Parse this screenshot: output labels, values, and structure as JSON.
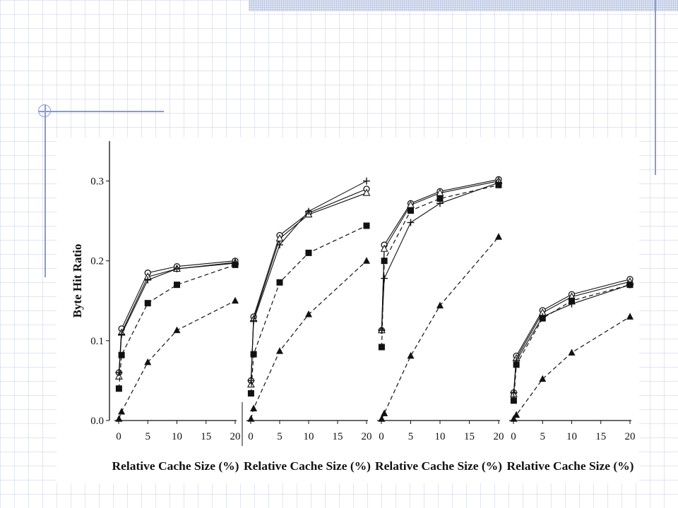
{
  "slide": {
    "accent_color": "#8a9ad0",
    "band_color": "#dfe5f3"
  },
  "chart_data": [
    {
      "type": "line",
      "ylabel": "Byte Hit Ratio",
      "xlabel": "Relative Cache Size (%)",
      "xlim": [
        0,
        20
      ],
      "ylim": [
        0,
        0.35
      ],
      "xticks": [
        "0",
        "5",
        "10",
        "15",
        "20"
      ],
      "yticks": [
        "0.0",
        "0.1",
        "0.2",
        "0.3"
      ],
      "series": [
        {
          "marker": "circle",
          "dash": false,
          "x": [
            0.05,
            0.5,
            5,
            10,
            20
          ],
          "y": [
            0.06,
            0.115,
            0.185,
            0.193,
            0.2
          ]
        },
        {
          "marker": "triangle-open",
          "dash": false,
          "x": [
            0.05,
            0.5,
            5,
            10,
            20
          ],
          "y": [
            0.055,
            0.11,
            0.18,
            0.19,
            0.198
          ]
        },
        {
          "marker": "plus",
          "dash": false,
          "x": [
            0.05,
            0.5,
            5,
            10,
            20
          ],
          "y": [
            0.06,
            0.108,
            0.176,
            0.19,
            0.197
          ]
        },
        {
          "marker": "square",
          "dash": true,
          "x": [
            0.05,
            0.5,
            5,
            10,
            20
          ],
          "y": [
            0.04,
            0.082,
            0.147,
            0.17,
            0.195
          ]
        },
        {
          "marker": "triangle",
          "dash": true,
          "x": [
            0.05,
            0.5,
            5,
            10,
            20
          ],
          "y": [
            0.002,
            0.011,
            0.073,
            0.113,
            0.15
          ]
        }
      ]
    },
    {
      "type": "line",
      "xlabel": "Relative Cache Size (%)",
      "xlim": [
        0,
        20
      ],
      "ylim": [
        0,
        0.35
      ],
      "xticks": [
        "0",
        "5",
        "10",
        "15",
        "20"
      ],
      "series": [
        {
          "marker": "circle",
          "dash": false,
          "x": [
            0.05,
            0.5,
            5,
            10,
            20
          ],
          "y": [
            0.05,
            0.13,
            0.232,
            0.26,
            0.29
          ]
        },
        {
          "marker": "triangle-open",
          "dash": false,
          "x": [
            0.05,
            0.5,
            5,
            10,
            20
          ],
          "y": [
            0.045,
            0.127,
            0.228,
            0.258,
            0.285
          ]
        },
        {
          "marker": "plus",
          "dash": false,
          "x": [
            0.05,
            0.5,
            5,
            10,
            20
          ],
          "y": [
            0.05,
            0.125,
            0.22,
            0.262,
            0.3
          ]
        },
        {
          "marker": "square",
          "dash": true,
          "x": [
            0.05,
            0.5,
            5,
            10,
            20
          ],
          "y": [
            0.034,
            0.083,
            0.173,
            0.21,
            0.244
          ]
        },
        {
          "marker": "triangle",
          "dash": true,
          "x": [
            0.05,
            0.5,
            5,
            10,
            20
          ],
          "y": [
            0.002,
            0.015,
            0.087,
            0.133,
            0.2
          ]
        }
      ]
    },
    {
      "type": "line",
      "xlabel": "Relative Cache Size (%)",
      "xlim": [
        0,
        20
      ],
      "ylim": [
        0,
        0.35
      ],
      "xticks": [
        "0",
        "5",
        "10",
        "15",
        "20"
      ],
      "series": [
        {
          "marker": "circle",
          "dash": false,
          "x": [
            0.05,
            0.5,
            5,
            10,
            20
          ],
          "y": [
            0.113,
            0.22,
            0.272,
            0.287,
            0.302
          ]
        },
        {
          "marker": "triangle-open",
          "dash": false,
          "x": [
            0.05,
            0.5,
            5,
            10,
            20
          ],
          "y": [
            0.113,
            0.215,
            0.27,
            0.285,
            0.3
          ]
        },
        {
          "marker": "plus",
          "dash": false,
          "x": [
            0.05,
            0.5,
            5,
            10,
            20
          ],
          "y": [
            0.113,
            0.178,
            0.248,
            0.272,
            0.298
          ]
        },
        {
          "marker": "square",
          "dash": true,
          "x": [
            0.05,
            0.5,
            5,
            10,
            20
          ],
          "y": [
            0.092,
            0.2,
            0.263,
            0.278,
            0.295
          ]
        },
        {
          "marker": "triangle",
          "dash": true,
          "x": [
            0.05,
            0.5,
            5,
            10,
            20
          ],
          "y": [
            0.002,
            0.009,
            0.081,
            0.144,
            0.23
          ]
        }
      ]
    },
    {
      "type": "line",
      "xlabel": "Relative Cache Size (%)",
      "xlim": [
        0,
        20
      ],
      "ylim": [
        0,
        0.35
      ],
      "xticks": [
        "0",
        "5",
        "10",
        "15",
        "20"
      ],
      "series": [
        {
          "marker": "circle",
          "dash": false,
          "x": [
            0.05,
            0.5,
            5,
            10,
            20
          ],
          "y": [
            0.035,
            0.081,
            0.138,
            0.158,
            0.177
          ]
        },
        {
          "marker": "triangle-open",
          "dash": false,
          "x": [
            0.05,
            0.5,
            5,
            10,
            20
          ],
          "y": [
            0.033,
            0.078,
            0.135,
            0.155,
            0.174
          ]
        },
        {
          "marker": "plus",
          "dash": false,
          "x": [
            0.05,
            0.5,
            5,
            10,
            20
          ],
          "y": [
            0.035,
            0.075,
            0.13,
            0.146,
            0.17
          ]
        },
        {
          "marker": "square",
          "dash": true,
          "x": [
            0.05,
            0.5,
            5,
            10,
            20
          ],
          "y": [
            0.025,
            0.07,
            0.128,
            0.15,
            0.17
          ]
        },
        {
          "marker": "triangle",
          "dash": true,
          "x": [
            0.05,
            0.5,
            5,
            10,
            20
          ],
          "y": [
            0.002,
            0.007,
            0.052,
            0.085,
            0.13
          ]
        }
      ]
    }
  ]
}
